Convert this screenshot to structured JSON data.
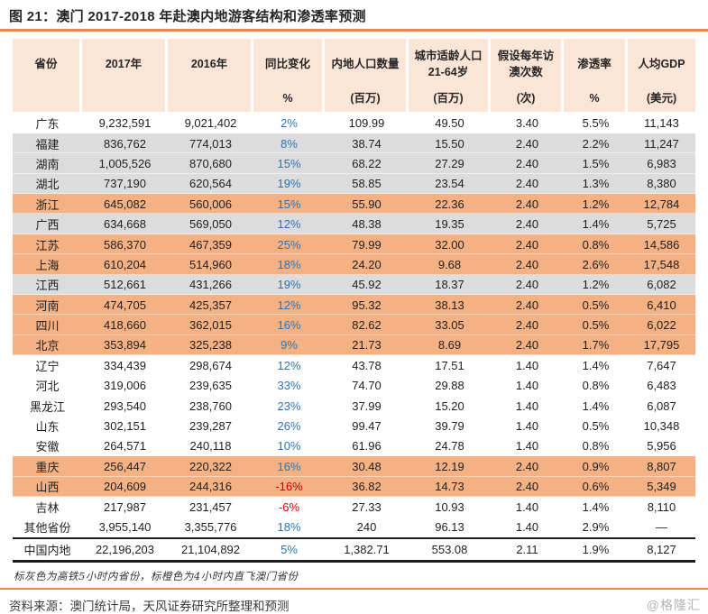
{
  "title": "图 21：澳门 2017-2018 年赴澳内地游客结构和渗透率预测",
  "legend_note": "标灰色为高铁5小时内省份，标橙色为4小时内直飞澳门省份",
  "source": "资料来源：澳门统计局，天风证券研究所整理和预测",
  "watermark": "@格隆汇",
  "colors": {
    "accent_orange": "#F2874B",
    "header_bg": "#FBE5D6",
    "row_orange": "#F4B183",
    "row_gray": "#DCDCDC",
    "pct_blue": "#2E74B5",
    "pct_red": "#CC0000"
  },
  "table": {
    "columns": [
      {
        "lines": [
          "省份"
        ],
        "unit": ""
      },
      {
        "lines": [
          "2017年"
        ],
        "unit": ""
      },
      {
        "lines": [
          "2016年"
        ],
        "unit": ""
      },
      {
        "lines": [
          "同比变化"
        ],
        "unit": "%"
      },
      {
        "lines": [
          "内地人口数量"
        ],
        "unit": "(百万)"
      },
      {
        "lines": [
          "城市适龄人口",
          "21-64岁"
        ],
        "unit": "(百万)"
      },
      {
        "lines": [
          "假设每年访",
          "澳次数"
        ],
        "unit": "(次)"
      },
      {
        "lines": [
          "渗透率"
        ],
        "unit": "%"
      },
      {
        "lines": [
          "人均GDP"
        ],
        "unit": "(美元)"
      }
    ],
    "rows": [
      {
        "province": "广东",
        "y2017": "9,232,591",
        "y2016": "9,021,402",
        "yoy": "2%",
        "population_m": "109.99",
        "urban_pop_m": "49.50",
        "visits": "3.40",
        "penetration": "5.5%",
        "gdp_usd": "11,143",
        "highlight": "none"
      },
      {
        "province": "福建",
        "y2017": "836,762",
        "y2016": "774,013",
        "yoy": "8%",
        "population_m": "38.74",
        "urban_pop_m": "15.50",
        "visits": "2.40",
        "penetration": "2.2%",
        "gdp_usd": "11,247",
        "highlight": "gray"
      },
      {
        "province": "湖南",
        "y2017": "1,005,526",
        "y2016": "870,680",
        "yoy": "15%",
        "population_m": "68.22",
        "urban_pop_m": "27.29",
        "visits": "2.40",
        "penetration": "1.5%",
        "gdp_usd": "6,983",
        "highlight": "gray"
      },
      {
        "province": "湖北",
        "y2017": "737,190",
        "y2016": "620,564",
        "yoy": "19%",
        "population_m": "58.85",
        "urban_pop_m": "23.54",
        "visits": "2.40",
        "penetration": "1.3%",
        "gdp_usd": "8,380",
        "highlight": "gray"
      },
      {
        "province": "浙江",
        "y2017": "645,082",
        "y2016": "560,006",
        "yoy": "15%",
        "population_m": "55.90",
        "urban_pop_m": "22.36",
        "visits": "2.40",
        "penetration": "1.2%",
        "gdp_usd": "12,784",
        "highlight": "orange"
      },
      {
        "province": "广西",
        "y2017": "634,668",
        "y2016": "569,050",
        "yoy": "12%",
        "population_m": "48.38",
        "urban_pop_m": "19.35",
        "visits": "2.40",
        "penetration": "1.4%",
        "gdp_usd": "5,725",
        "highlight": "gray"
      },
      {
        "province": "江苏",
        "y2017": "586,370",
        "y2016": "467,359",
        "yoy": "25%",
        "population_m": "79.99",
        "urban_pop_m": "32.00",
        "visits": "2.40",
        "penetration": "0.8%",
        "gdp_usd": "14,586",
        "highlight": "orange"
      },
      {
        "province": "上海",
        "y2017": "610,204",
        "y2016": "514,960",
        "yoy": "18%",
        "population_m": "24.20",
        "urban_pop_m": "9.68",
        "visits": "2.40",
        "penetration": "2.6%",
        "gdp_usd": "17,548",
        "highlight": "orange"
      },
      {
        "province": "江西",
        "y2017": "512,661",
        "y2016": "431,266",
        "yoy": "19%",
        "population_m": "45.92",
        "urban_pop_m": "18.37",
        "visits": "2.40",
        "penetration": "1.2%",
        "gdp_usd": "6,082",
        "highlight": "gray"
      },
      {
        "province": "河南",
        "y2017": "474,705",
        "y2016": "425,357",
        "yoy": "12%",
        "population_m": "95.32",
        "urban_pop_m": "38.13",
        "visits": "2.40",
        "penetration": "0.5%",
        "gdp_usd": "6,410",
        "highlight": "orange"
      },
      {
        "province": "四川",
        "y2017": "418,660",
        "y2016": "362,015",
        "yoy": "16%",
        "population_m": "82.62",
        "urban_pop_m": "33.05",
        "visits": "2.40",
        "penetration": "0.5%",
        "gdp_usd": "6,022",
        "highlight": "orange"
      },
      {
        "province": "北京",
        "y2017": "353,894",
        "y2016": "325,238",
        "yoy": "9%",
        "population_m": "21.73",
        "urban_pop_m": "8.69",
        "visits": "2.40",
        "penetration": "1.7%",
        "gdp_usd": "17,795",
        "highlight": "orange"
      },
      {
        "province": "辽宁",
        "y2017": "334,439",
        "y2016": "298,674",
        "yoy": "12%",
        "population_m": "43.78",
        "urban_pop_m": "17.51",
        "visits": "1.40",
        "penetration": "1.4%",
        "gdp_usd": "7,647",
        "highlight": "none"
      },
      {
        "province": "河北",
        "y2017": "319,006",
        "y2016": "239,635",
        "yoy": "33%",
        "population_m": "74.70",
        "urban_pop_m": "29.88",
        "visits": "1.40",
        "penetration": "0.8%",
        "gdp_usd": "6,483",
        "highlight": "none"
      },
      {
        "province": "黑龙江",
        "y2017": "293,540",
        "y2016": "238,760",
        "yoy": "23%",
        "population_m": "37.99",
        "urban_pop_m": "15.20",
        "visits": "1.40",
        "penetration": "1.4%",
        "gdp_usd": "6,087",
        "highlight": "none"
      },
      {
        "province": "山东",
        "y2017": "302,151",
        "y2016": "239,287",
        "yoy": "26%",
        "population_m": "99.47",
        "urban_pop_m": "39.79",
        "visits": "1.40",
        "penetration": "0.5%",
        "gdp_usd": "10,348",
        "highlight": "none"
      },
      {
        "province": "安徽",
        "y2017": "264,571",
        "y2016": "240,118",
        "yoy": "10%",
        "population_m": "61.96",
        "urban_pop_m": "24.78",
        "visits": "1.40",
        "penetration": "0.8%",
        "gdp_usd": "5,956",
        "highlight": "none"
      },
      {
        "province": "重庆",
        "y2017": "256,447",
        "y2016": "220,322",
        "yoy": "16%",
        "population_m": "30.48",
        "urban_pop_m": "12.19",
        "visits": "2.40",
        "penetration": "0.9%",
        "gdp_usd": "8,807",
        "highlight": "orange"
      },
      {
        "province": "山西",
        "y2017": "204,609",
        "y2016": "244,316",
        "yoy": "-16%",
        "population_m": "36.82",
        "urban_pop_m": "14.73",
        "visits": "2.40",
        "penetration": "0.6%",
        "gdp_usd": "5,349",
        "highlight": "orange"
      },
      {
        "province": "吉林",
        "y2017": "217,987",
        "y2016": "231,457",
        "yoy": "-6%",
        "population_m": "27.33",
        "urban_pop_m": "10.93",
        "visits": "1.40",
        "penetration": "1.4%",
        "gdp_usd": "8,110",
        "highlight": "none"
      },
      {
        "province": "其他省份",
        "y2017": "3,955,140",
        "y2016": "3,355,776",
        "yoy": "18%",
        "population_m": "240",
        "urban_pop_m": "96.13",
        "visits": "1.40",
        "penetration": "2.9%",
        "gdp_usd": "—",
        "highlight": "none"
      },
      {
        "province": "中国内地",
        "y2017": "22,196,203",
        "y2016": "21,104,892",
        "yoy": "5%",
        "population_m": "1,382.71",
        "urban_pop_m": "553.08",
        "visits": "2.11",
        "penetration": "1.9%",
        "gdp_usd": "8,127",
        "highlight": "none",
        "total": true
      }
    ]
  }
}
